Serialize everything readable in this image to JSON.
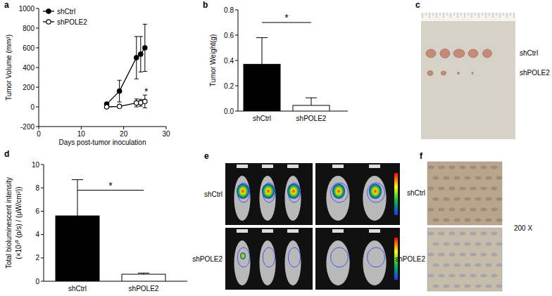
{
  "panel_labels": [
    "a",
    "b",
    "c",
    "d",
    "e",
    "f"
  ],
  "chart_data": [
    {
      "type": "line",
      "x_label": "Days post-tumor inoculation",
      "y_label": "Tumor Volume (mm³)",
      "x": [
        16,
        19,
        23,
        24,
        25
      ],
      "series": [
        {
          "name": "shCtrl",
          "color": "#000000",
          "marker": "circle",
          "values": [
            28,
            160,
            500,
            535,
            600
          ],
          "errors": [
            10,
            110,
            215,
            180,
            240
          ]
        },
        {
          "name": "shPOLE2",
          "color": "#000000",
          "marker": "circle-open",
          "values": [
            0,
            5,
            40,
            42,
            55
          ],
          "errors": [
            0,
            5,
            40,
            35,
            65
          ]
        }
      ],
      "xlim": [
        0,
        30
      ],
      "xticks": [
        0,
        10,
        20,
        30
      ],
      "ylim": [
        -200,
        1000
      ],
      "yticks": [
        -200,
        0,
        200,
        400,
        600,
        800,
        1000
      ],
      "legend": "upper left",
      "annotations": [
        {
          "text": "*",
          "x": 25,
          "y": 160
        }
      ]
    },
    {
      "type": "bar",
      "y_label": "Tumor Weight(g)",
      "categories": [
        "shCtrl",
        "shPOLE2"
      ],
      "values": [
        0.37,
        0.045
      ],
      "errors": [
        0.21,
        0.06
      ],
      "colors": [
        "#000000",
        "#ffffff"
      ],
      "ylim": [
        0,
        0.8
      ],
      "yticks": [
        {
          "value": 0,
          "label": "0.0"
        },
        0.2,
        0.4,
        0.6,
        0.8
      ],
      "annotations": [
        {
          "text": "*",
          "y": 0.7
        }
      ]
    },
    {
      "type": "bar",
      "y_label": [
        "Total bioluminescent intensity",
        "(×10¹⁰ (p/s) / (μW/cm²))"
      ],
      "categories": [
        "shCtrl",
        "shPOLE2"
      ],
      "values": [
        5.6,
        0.6
      ],
      "errors": [
        3.1,
        0.1
      ],
      "colors": [
        "#000000",
        "#ffffff"
      ],
      "ylim": [
        0,
        10
      ],
      "yticks": [
        0,
        2,
        4,
        6,
        8,
        10
      ],
      "annotations": [
        {
          "text": "*",
          "y": 7.8
        }
      ]
    }
  ],
  "images": {
    "c": {
      "labels": [
        "shCtrl",
        "shPOLE2"
      ]
    },
    "e": {
      "labels": [
        "shCtrl",
        "shPOLE2"
      ]
    },
    "f": {
      "labels": [
        "shCtrl",
        "shPOLE2"
      ],
      "magnification": "200 X"
    }
  }
}
